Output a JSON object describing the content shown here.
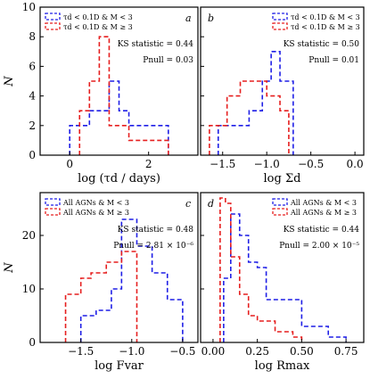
{
  "colors": {
    "blue": "#1f1fe6",
    "red": "#e61f1f"
  },
  "chart_data": [
    {
      "type": "histogram",
      "panel_label": "a",
      "xlabel": "log (τd / days)",
      "ylabel": "N",
      "xlim": [
        -0.75,
        3.25
      ],
      "ylim": [
        0,
        10
      ],
      "xticks": [
        0,
        2
      ],
      "yticks": [
        0,
        2,
        4,
        6,
        8,
        10
      ],
      "ks_statistic": "KS statistic = 0.44",
      "p_null": "Pnull = 0.03",
      "series": [
        {
          "name": "τd < 0.1D & M < 3",
          "color": "blue",
          "edges": [
            0,
            0.5,
            1,
            1.25,
            1.5,
            2.5
          ],
          "counts": [
            2,
            3,
            5,
            3,
            2
          ]
        },
        {
          "name": "τd < 0.1D & M ≥ 3",
          "color": "red",
          "edges": [
            0.25,
            0.5,
            0.75,
            1,
            1.5,
            2.5
          ],
          "counts": [
            3,
            5,
            8,
            2,
            1
          ]
        }
      ]
    },
    {
      "type": "histogram",
      "panel_label": "b",
      "xlabel": "log Σd",
      "ylabel": "",
      "xlim": [
        -1.75,
        0.1
      ],
      "ylim": [
        0,
        10
      ],
      "xticks": [
        -1.5,
        -1.0,
        -0.5,
        0.0
      ],
      "yticks": [
        0,
        2,
        4,
        6,
        8,
        10
      ],
      "ks_statistic": "KS statistic = 0.50",
      "p_null": "Pnull = 0.01",
      "series": [
        {
          "name": "τd < 0.1D & M < 3",
          "color": "blue",
          "edges": [
            -1.55,
            -1.2,
            -1.05,
            -0.95,
            -0.85,
            -0.7
          ],
          "counts": [
            2,
            3,
            5,
            7,
            5
          ]
        },
        {
          "name": "τd < 0.1D & M ≥ 3",
          "color": "red",
          "edges": [
            -1.65,
            -1.45,
            -1.3,
            -1.0,
            -0.85,
            -0.75
          ],
          "counts": [
            2,
            4,
            5,
            4,
            3
          ]
        }
      ]
    },
    {
      "type": "histogram",
      "panel_label": "c",
      "xlabel": "log Fvar",
      "ylabel": "N",
      "xlim": [
        -1.9,
        -0.35
      ],
      "ylim": [
        0,
        28
      ],
      "xticks": [
        -1.5,
        -1.0,
        -0.5
      ],
      "yticks": [
        0,
        10,
        20
      ],
      "ks_statistic": "KS statistic = 0.48",
      "p_null": "Pnull = 2.81 × 10⁻⁶",
      "series": [
        {
          "name": "All AGNs & M < 3",
          "color": "blue",
          "edges": [
            -1.5,
            -1.35,
            -1.2,
            -1.1,
            -0.95,
            -0.8,
            -0.65,
            -0.5
          ],
          "counts": [
            5,
            6,
            10,
            23,
            18,
            13,
            8
          ]
        },
        {
          "name": "All AGNs & M ≥ 3",
          "color": "red",
          "edges": [
            -1.65,
            -1.5,
            -1.4,
            -1.25,
            -1.1,
            -0.95
          ],
          "counts": [
            9,
            12,
            13,
            15,
            17
          ]
        }
      ]
    },
    {
      "type": "histogram",
      "panel_label": "d",
      "xlabel": "log Rmax",
      "ylabel": "",
      "xlim": [
        -0.07,
        0.85
      ],
      "ylim": [
        0,
        28
      ],
      "xticks": [
        0.0,
        0.25,
        0.5,
        0.75
      ],
      "yticks": [
        0,
        10,
        20
      ],
      "ks_statistic": "KS statistic = 0.44",
      "p_null": "Pnull = 2.00 × 10⁻⁵",
      "series": [
        {
          "name": "All AGNs & M < 3",
          "color": "blue",
          "edges": [
            0.06,
            0.1,
            0.15,
            0.2,
            0.25,
            0.3,
            0.5,
            0.65,
            0.75
          ],
          "counts": [
            12,
            24,
            20,
            15,
            14,
            8,
            3,
            1
          ]
        },
        {
          "name": "All AGNs & M ≥ 3",
          "color": "red",
          "edges": [
            0.04,
            0.07,
            0.1,
            0.15,
            0.2,
            0.25,
            0.35,
            0.45,
            0.5
          ],
          "counts": [
            27,
            26,
            16,
            9,
            5,
            4,
            2,
            1
          ]
        }
      ]
    }
  ]
}
